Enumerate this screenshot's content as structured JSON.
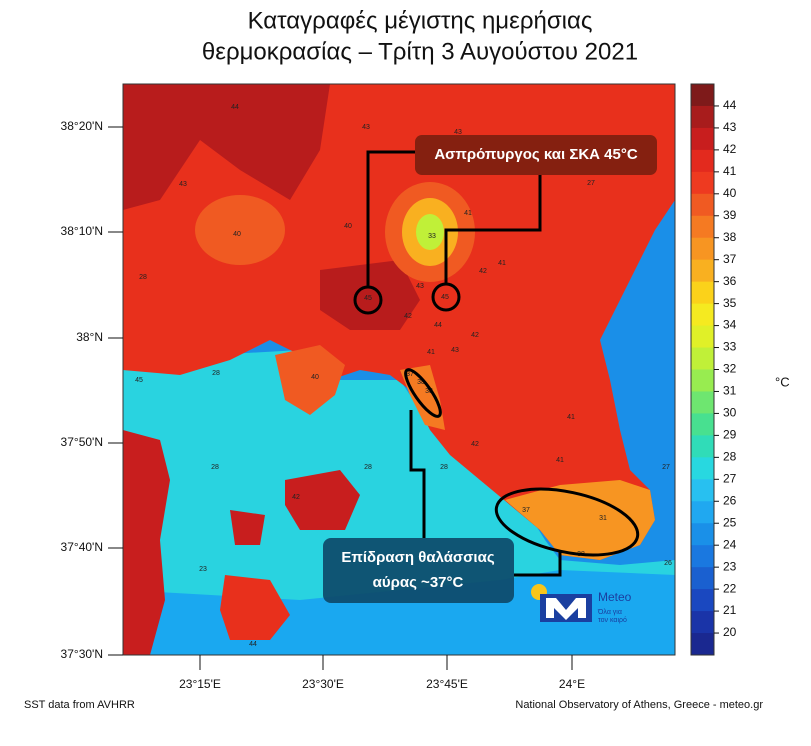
{
  "title": [
    "Καταγραφές μέγιστης ημερήσιας",
    "θερμοκρασίας – Τρίτη 3 Αυγούστου 2021"
  ],
  "map": {
    "lat_labels": [
      "38°20'N",
      "38°10'N",
      "38°N",
      "37°50'N",
      "37°40'N",
      "37°30'N"
    ],
    "lon_labels": [
      "23°15'E",
      "23°30'E",
      "23°45'E",
      "24°E"
    ],
    "stations": [
      44,
      43,
      43,
      40,
      40,
      28,
      45,
      45,
      33,
      41,
      42,
      42,
      41,
      43,
      44,
      41,
      43,
      42,
      43,
      28,
      40,
      38,
      37,
      38,
      28,
      28,
      28,
      42,
      41,
      41,
      37,
      31,
      38,
      27,
      27,
      26,
      23,
      44,
      42,
      45
    ]
  },
  "colorbar": {
    "unit": "°C",
    "labels": [
      44,
      43,
      42,
      41,
      40,
      39,
      38,
      37,
      36,
      35,
      34,
      33,
      32,
      31,
      30,
      29,
      28,
      27,
      26,
      25,
      24,
      23,
      22,
      21,
      20
    ],
    "colors": [
      "#7e1a1a",
      "#a81c1c",
      "#c81e1e",
      "#e32a1e",
      "#ee3a20",
      "#f05a22",
      "#f57a22",
      "#f79522",
      "#f9b020",
      "#fbd21a",
      "#f5ea20",
      "#e0f028",
      "#c0f038",
      "#98ec50",
      "#6ee670",
      "#48e090",
      "#30dcb8",
      "#28d8e0",
      "#28c0f0",
      "#20a8f0",
      "#1a90e8",
      "#1a78e0",
      "#1a60d0",
      "#1a48c0",
      "#1a34a8",
      "#1a2890"
    ]
  },
  "annotations": [
    "Ασπρόπυργος και ΣΚΑ 45°C",
    "Επίδραση θαλάσσιας",
    "αύρας ~37°C"
  ],
  "logo": {
    "name": "Meteo",
    "tagline": [
      "Όλα για",
      "τον καιρό"
    ]
  },
  "footer": {
    "left": "SST data from AVHRR",
    "right": "National Observatory of Athens, Greece - meteo.gr"
  }
}
